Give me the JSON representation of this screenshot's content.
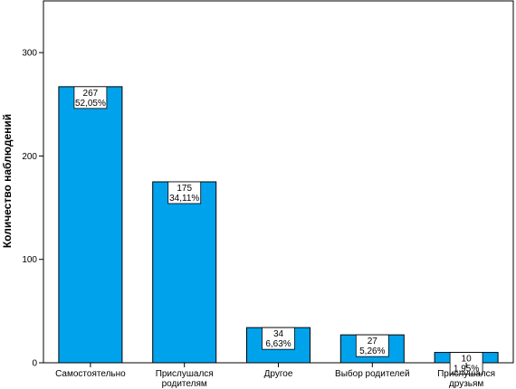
{
  "chart_data": {
    "type": "bar",
    "categories": [
      [
        "Самостоятельно"
      ],
      [
        "Прислушался",
        "родителям"
      ],
      [
        "Другое"
      ],
      [
        "Выбор родителей"
      ],
      [
        "Прислушался",
        "друзьям"
      ]
    ],
    "values": [
      267,
      175,
      34,
      27,
      10
    ],
    "percent_labels": [
      "52,05%",
      "34,11%",
      "6,63%",
      "5,26%",
      "1,95%"
    ],
    "ylabel": "Количество наблюдений",
    "xlabel": "",
    "ylim": [
      0,
      350
    ],
    "yticks": [
      0,
      100,
      200,
      300
    ],
    "grid": false,
    "colors": {
      "bar_fill": "#00a2ec",
      "bar_stroke": "#000000",
      "plot_background": "#ffffff",
      "frame": "#000000",
      "label_box": "#ffffff"
    }
  }
}
